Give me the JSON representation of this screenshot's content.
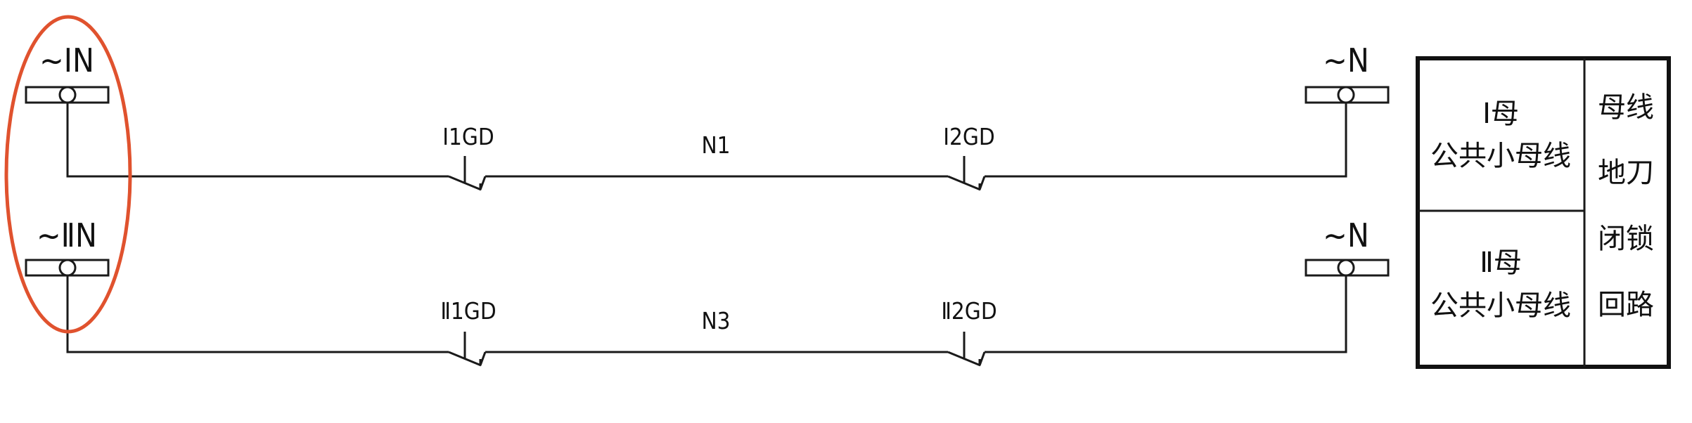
{
  "highlight_color": "#e0522e",
  "buses": [
    {
      "source_label": "~ⅠN",
      "right_label": "~N",
      "wire_label": "N1",
      "switch1_label": "Ⅰ1GD",
      "switch2_label": "Ⅰ2GD"
    },
    {
      "source_label": "~ⅡN",
      "right_label": "~N",
      "wire_label": "N3",
      "switch1_label": "Ⅱ1GD",
      "switch2_label": "Ⅱ2GD"
    }
  ],
  "legend": {
    "cell1_line1": "Ⅰ母",
    "cell1_line2": "公共小母线",
    "cell2_line1": "Ⅱ母",
    "cell2_line2": "公共小母线",
    "side_lines": [
      "母线",
      "地刀",
      "闭锁",
      "回路"
    ]
  }
}
